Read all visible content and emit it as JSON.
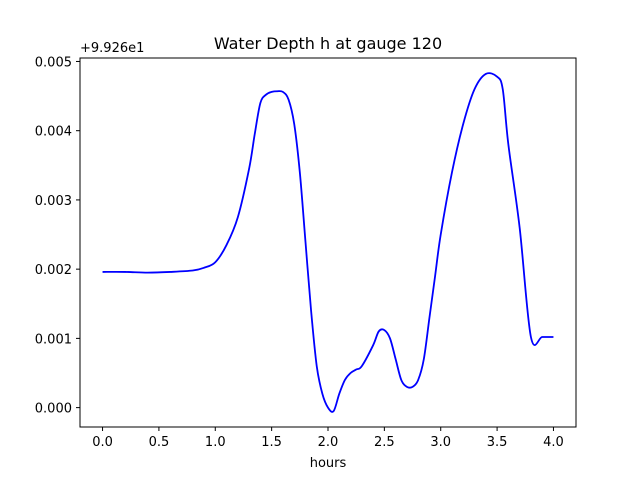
{
  "chart_data": {
    "type": "line",
    "title": "Water Depth h at gauge 120",
    "xlabel": "hours",
    "ylabel": "",
    "y_offset_label": "+9.926e1",
    "xlim": [
      -0.2,
      4.2
    ],
    "ylim": [
      -0.00028,
      0.00505
    ],
    "x_ticks": [
      0.0,
      0.5,
      1.0,
      1.5,
      2.0,
      2.5,
      3.0,
      3.5,
      4.0
    ],
    "x_tick_labels": [
      "0.0",
      "0.5",
      "1.0",
      "1.5",
      "2.0",
      "2.5",
      "3.0",
      "3.5",
      "4.0"
    ],
    "y_ticks": [
      0.0,
      0.001,
      0.002,
      0.003,
      0.004,
      0.005
    ],
    "y_tick_labels": [
      "0.000",
      "0.001",
      "0.002",
      "0.003",
      "0.004",
      "0.005"
    ],
    "grid": false,
    "legend": "none",
    "series": [
      {
        "color": "#0000ff",
        "x": [
          0.0,
          0.2,
          0.4,
          0.6,
          0.8,
          0.9,
          1.0,
          1.1,
          1.2,
          1.3,
          1.35,
          1.4,
          1.45,
          1.5,
          1.55,
          1.6,
          1.65,
          1.7,
          1.75,
          1.8,
          1.85,
          1.9,
          1.95,
          2.0,
          2.05,
          2.1,
          2.15,
          2.2,
          2.25,
          2.3,
          2.4,
          2.45,
          2.5,
          2.55,
          2.6,
          2.65,
          2.7,
          2.75,
          2.8,
          2.85,
          2.9,
          2.95,
          3.0,
          3.1,
          3.2,
          3.3,
          3.4,
          3.5,
          3.55,
          3.6,
          3.7,
          3.8,
          3.9,
          4.0
        ],
        "values": [
          0.00196,
          0.00196,
          0.00195,
          0.00196,
          0.00198,
          0.00202,
          0.0021,
          0.00235,
          0.00275,
          0.00345,
          0.00395,
          0.0044,
          0.00452,
          0.00456,
          0.00457,
          0.00456,
          0.00445,
          0.0041,
          0.0034,
          0.0024,
          0.0014,
          0.0006,
          0.0002,
          0.0,
          -5e-05,
          0.0002,
          0.0004,
          0.0005,
          0.00055,
          0.0006,
          0.0009,
          0.0011,
          0.00112,
          0.001,
          0.0007,
          0.0004,
          0.0003,
          0.0003,
          0.0004,
          0.0007,
          0.0013,
          0.0019,
          0.0025,
          0.0034,
          0.0041,
          0.0046,
          0.00482,
          0.00478,
          0.0046,
          0.0038,
          0.0026,
          0.00102,
          0.00102,
          0.00102
        ]
      }
    ]
  }
}
